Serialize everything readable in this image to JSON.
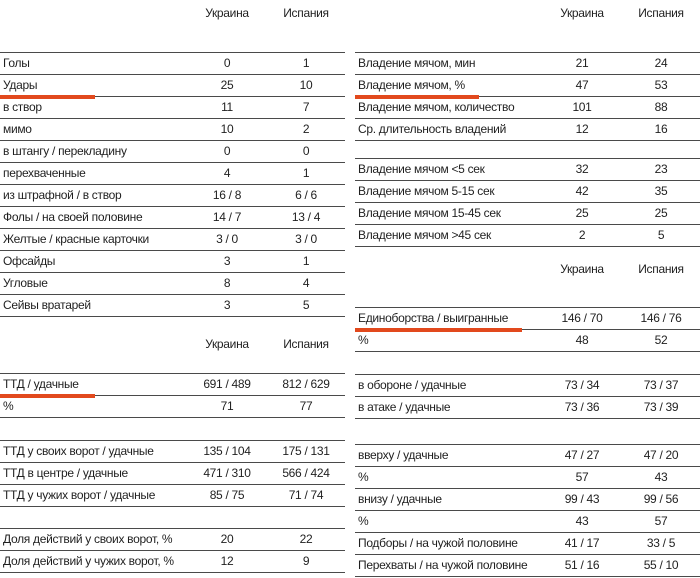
{
  "accent_color": "#e2491d",
  "border_color": "#4a4a4a",
  "left": {
    "blocks": [
      {
        "type": "header",
        "col1": "Украина",
        "col2": "Испания"
      },
      {
        "type": "table",
        "rows": [
          {
            "label": "Голы",
            "ukr": "0",
            "esp": "1"
          },
          {
            "label": "Удары",
            "ukr": "25",
            "esp": "10",
            "underline": true
          },
          {
            "label": "в створ",
            "ukr": "11",
            "esp": "7"
          },
          {
            "label": "мимо",
            "ukr": "10",
            "esp": "2"
          },
          {
            "label": "в штангу / перекладину",
            "ukr": "0",
            "esp": "0"
          },
          {
            "label": "перехваченные",
            "ukr": "4",
            "esp": "1"
          },
          {
            "label": "из штрафной / в створ",
            "ukr": "16 / 8",
            "esp": "6 / 6"
          },
          {
            "label": "Фолы / на своей половине",
            "ukr": "14 / 7",
            "esp": "13 / 4"
          },
          {
            "label": "Желтые / красные карточки",
            "ukr": "3 / 0",
            "esp": "3 / 0"
          },
          {
            "label": "Офсайды",
            "ukr": "3",
            "esp": "1"
          },
          {
            "label": "Угловые",
            "ukr": "8",
            "esp": "4"
          },
          {
            "label": "Сейвы вратарей",
            "ukr": "3",
            "esp": "5"
          }
        ]
      },
      {
        "type": "header",
        "col1": "Украина",
        "col2": "Испания"
      },
      {
        "type": "table",
        "rows": [
          {
            "label": "ТТД / удачные",
            "ukr": "691 / 489",
            "esp": "812 / 629",
            "underline": true
          },
          {
            "label": "%",
            "ukr": "71",
            "esp": "77"
          }
        ]
      },
      {
        "type": "table",
        "rows": [
          {
            "label": "ТТД у своих ворот / удачные",
            "ukr": "135 / 104",
            "esp": "175 / 131"
          },
          {
            "label": "ТТД в центре / удачные",
            "ukr": "471 / 310",
            "esp": "566 / 424"
          },
          {
            "label": "ТТД у чужих ворот / удачные",
            "ukr": "85 / 75",
            "esp": "71 / 74"
          }
        ]
      },
      {
        "type": "table",
        "rows": [
          {
            "label": "Доля действий у своих ворот, %",
            "ukr": "20",
            "esp": "22"
          },
          {
            "label": "Доля действий у чужих ворот, %",
            "ukr": "12",
            "esp": "9"
          }
        ]
      }
    ]
  },
  "right": {
    "blocks": [
      {
        "type": "header",
        "col1": "Украина",
        "col2": "Испания"
      },
      {
        "type": "table",
        "rows": [
          {
            "label": "Владение мячом, мин",
            "ukr": "21",
            "esp": "24"
          },
          {
            "label": "Владение мячом, %",
            "ukr": "47",
            "esp": "53",
            "underline": true
          },
          {
            "label": "Владение мячом, количество",
            "ukr": "101",
            "esp": "88"
          },
          {
            "label": "Ср. длительность владений",
            "ukr": "12",
            "esp": "16"
          }
        ]
      },
      {
        "type": "table",
        "rows": [
          {
            "label": "Владение мячом <5 сек",
            "ukr": "32",
            "esp": "23"
          },
          {
            "label": "Владение мячом 5-15 сек",
            "ukr": "42",
            "esp": "35"
          },
          {
            "label": "Владение мячом 15-45 сек",
            "ukr": "25",
            "esp": "25"
          },
          {
            "label": "Владение мячом >45 сек",
            "ukr": "2",
            "esp": "5"
          }
        ]
      },
      {
        "type": "header",
        "col1": "Украина",
        "col2": "Испания"
      },
      {
        "type": "table",
        "rows": [
          {
            "label": "Единоборства / выигранные",
            "ukr": "146 / 70",
            "esp": "146 / 76",
            "underline": true
          },
          {
            "label": "%",
            "ukr": "48",
            "esp": "52"
          }
        ]
      },
      {
        "type": "table",
        "rows": [
          {
            "label": "в обороне / удачные",
            "ukr": "73 / 34",
            "esp": "73 / 37"
          },
          {
            "label": "в атаке / удачные",
            "ukr": "73 / 36",
            "esp": "73 / 39"
          }
        ]
      },
      {
        "type": "table",
        "rows": [
          {
            "label": "вверху / удачные",
            "ukr": "47 / 27",
            "esp": "47 / 20"
          },
          {
            "label": "%",
            "ukr": "57",
            "esp": "43"
          },
          {
            "label": "внизу / удачные",
            "ukr": "99 / 43",
            "esp": "99 / 56"
          },
          {
            "label": "%",
            "ukr": "43",
            "esp": "57"
          },
          {
            "label": "Подборы / на чужой половине",
            "ukr": "41 / 17",
            "esp": "33 / 5"
          },
          {
            "label": "Перехваты / на чужой половине",
            "ukr": "51 / 16",
            "esp": "55 / 10"
          }
        ]
      }
    ]
  }
}
